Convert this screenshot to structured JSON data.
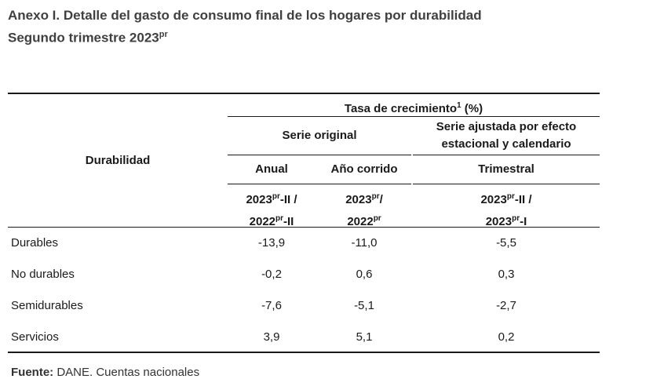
{
  "title": {
    "line1": "Anexo I. Detalle del gasto de consumo final de los hogares por durabilidad",
    "line2_main": "Segundo trimestre 2023",
    "line2_sup": "pr"
  },
  "header": {
    "row_label": "Durabilidad",
    "group_title": "Tasa de crecimiento",
    "group_sup": "1",
    "group_unit": " (%)",
    "serie_original": "Serie original",
    "serie_ajustada_1": "Serie ajustada por efecto",
    "serie_ajustada_2": "estacional y calendario",
    "anual": "Anual",
    "anio_corrido": "Año corrido",
    "trimestral": "Trimestral",
    "sup_pr": "pr",
    "period_anual_1": "2023",
    "period_anual_1b": "-II /",
    "period_anual_2": "2022",
    "period_anual_2b": "-II",
    "period_corrido_1": "2023",
    "period_corrido_1b": "/",
    "period_corrido_2": "2022",
    "period_trim_1": "2023",
    "period_trim_1b": "-II /",
    "period_trim_2": "2023",
    "period_trim_2b": "-I"
  },
  "rows": [
    {
      "label": "Durables",
      "anual": "-13,9",
      "corrido": "-11,0",
      "trimestral": "-5,5"
    },
    {
      "label": "No durables",
      "anual": "-0,2",
      "corrido": "0,6",
      "trimestral": "0,3"
    },
    {
      "label": "Semidurables",
      "anual": "-7,6",
      "corrido": "-5,1",
      "trimestral": "-2,7"
    },
    {
      "label": "Servicios",
      "anual": "3,9",
      "corrido": "5,1",
      "trimestral": "0,2"
    }
  ],
  "footer": {
    "label": "Fuente:",
    "text": " DANE. Cuentas nacionales"
  }
}
